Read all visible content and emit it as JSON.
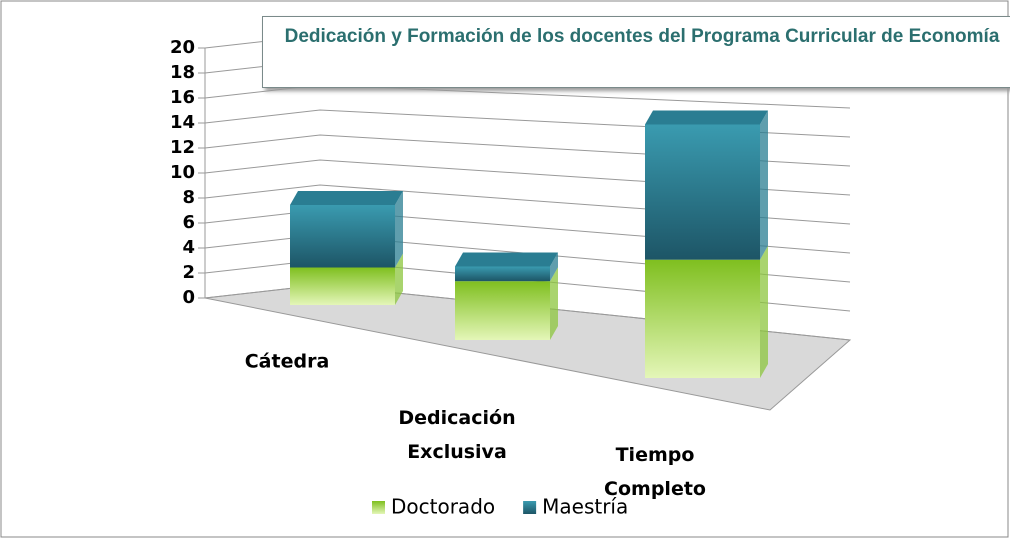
{
  "chart_data": {
    "type": "bar3d_stacked",
    "title": "Dedicación y Formación de los docentes del Programa Curricular de Economía",
    "categories": [
      "Cátedra",
      "Dedicación Exclusiva",
      "Tiempo Completo"
    ],
    "series": [
      {
        "name": "Doctorado",
        "color": "#8cc63e",
        "values": [
          3,
          4,
          7
        ]
      },
      {
        "name": "Maestría",
        "color": "#2a7d92",
        "values": [
          5,
          1,
          8
        ]
      }
    ],
    "ylim": [
      0,
      20
    ],
    "yticks": [
      0,
      2,
      4,
      6,
      8,
      10,
      12,
      14,
      16,
      18,
      20
    ],
    "grid": true,
    "legend": "bottom"
  }
}
